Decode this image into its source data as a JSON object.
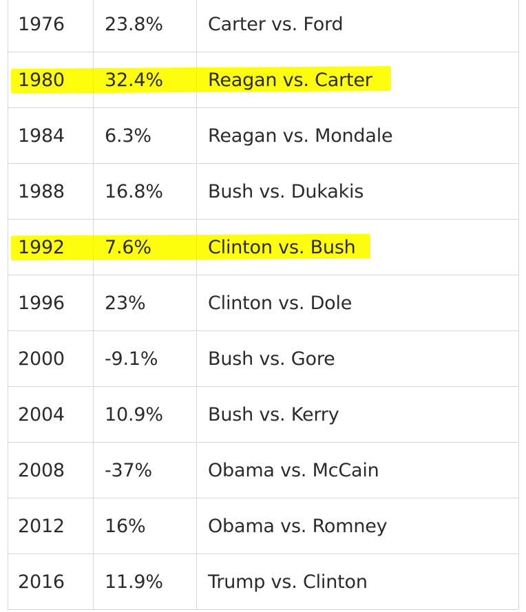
{
  "table": {
    "rows": [
      {
        "year": "1976",
        "change": "23.8%",
        "race": "Carter vs. Ford",
        "highlighted": false
      },
      {
        "year": "1980",
        "change": "32.4%",
        "race": "Reagan vs. Carter",
        "highlighted": true
      },
      {
        "year": "1984",
        "change": "6.3%",
        "race": "Reagan vs. Mondale",
        "highlighted": false
      },
      {
        "year": "1988",
        "change": "16.8%",
        "race": "Bush vs. Dukakis",
        "highlighted": false
      },
      {
        "year": "1992",
        "change": "7.6%",
        "race": "Clinton vs. Bush",
        "highlighted": true
      },
      {
        "year": "1996",
        "change": "23%",
        "race": "Clinton vs. Dole",
        "highlighted": false
      },
      {
        "year": "2000",
        "change": "-9.1%",
        "race": "Bush vs. Gore",
        "highlighted": false
      },
      {
        "year": "2004",
        "change": "10.9%",
        "race": "Bush vs. Kerry",
        "highlighted": false
      },
      {
        "year": "2008",
        "change": "-37%",
        "race": "Obama vs. McCain",
        "highlighted": false
      },
      {
        "year": "2012",
        "change": "16%",
        "race": "Obama vs. Romney",
        "highlighted": false
      },
      {
        "year": "2016",
        "change": "11.9%",
        "race": "Trump vs. Clinton",
        "highlighted": false
      }
    ]
  },
  "colors": {
    "highlight": "#fdfd0d",
    "grid": "#d6d6d6",
    "text": "#2b2b2b"
  }
}
